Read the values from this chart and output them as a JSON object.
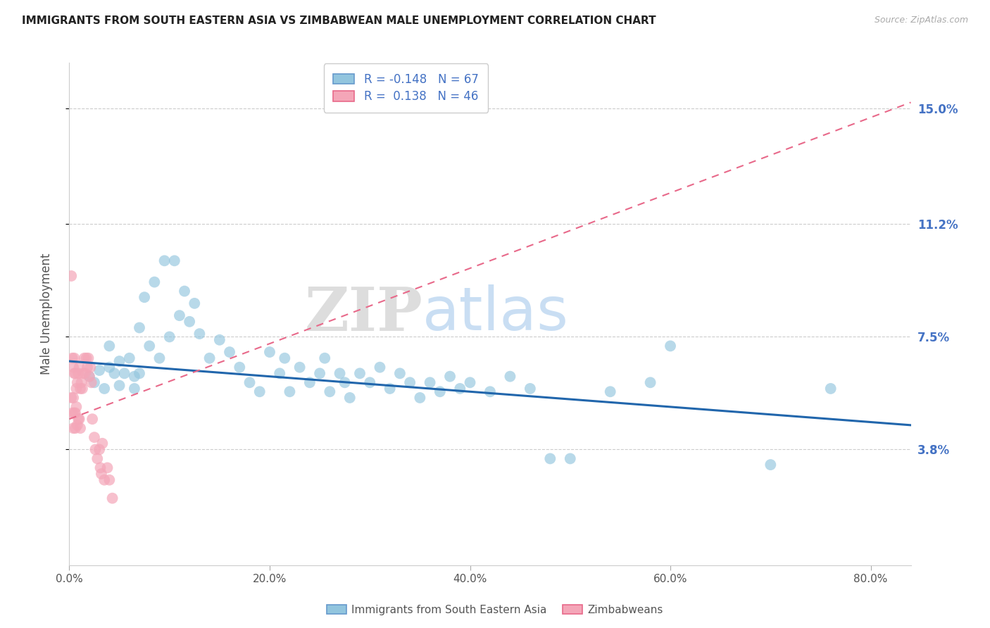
{
  "title": "IMMIGRANTS FROM SOUTH EASTERN ASIA VS ZIMBABWEAN MALE UNEMPLOYMENT CORRELATION CHART",
  "source": "Source: ZipAtlas.com",
  "ylabel": "Male Unemployment",
  "xlabel_ticks": [
    "0.0%",
    "20.0%",
    "40.0%",
    "60.0%",
    "80.0%"
  ],
  "xlabel_vals": [
    0.0,
    0.2,
    0.4,
    0.6,
    0.8
  ],
  "ytick_labels": [
    "3.8%",
    "7.5%",
    "11.2%",
    "15.0%"
  ],
  "ytick_vals": [
    0.038,
    0.075,
    0.112,
    0.15
  ],
  "xlim": [
    0.0,
    0.84
  ],
  "ylim": [
    0.0,
    0.165
  ],
  "r_blue": -0.148,
  "n_blue": 67,
  "r_pink": 0.138,
  "n_pink": 46,
  "legend_label_blue": "Immigrants from South Eastern Asia",
  "legend_label_pink": "Zimbabweans",
  "blue_color": "#92c5de",
  "pink_color": "#f4a6b8",
  "trend_blue_color": "#2166ac",
  "trend_pink_color": "#e8698a",
  "watermark_zip": "ZIP",
  "watermark_atlas": "atlas",
  "blue_scatter_x": [
    0.02,
    0.025,
    0.03,
    0.035,
    0.04,
    0.04,
    0.045,
    0.05,
    0.05,
    0.055,
    0.06,
    0.065,
    0.065,
    0.07,
    0.07,
    0.075,
    0.08,
    0.085,
    0.09,
    0.095,
    0.1,
    0.105,
    0.11,
    0.115,
    0.12,
    0.125,
    0.13,
    0.14,
    0.15,
    0.16,
    0.17,
    0.18,
    0.19,
    0.2,
    0.21,
    0.215,
    0.22,
    0.23,
    0.24,
    0.25,
    0.255,
    0.26,
    0.27,
    0.275,
    0.28,
    0.29,
    0.3,
    0.31,
    0.32,
    0.33,
    0.34,
    0.35,
    0.36,
    0.37,
    0.38,
    0.39,
    0.4,
    0.42,
    0.44,
    0.46,
    0.48,
    0.5,
    0.54,
    0.58,
    0.6,
    0.7,
    0.76
  ],
  "blue_scatter_y": [
    0.062,
    0.06,
    0.064,
    0.058,
    0.072,
    0.065,
    0.063,
    0.067,
    0.059,
    0.063,
    0.068,
    0.062,
    0.058,
    0.078,
    0.063,
    0.088,
    0.072,
    0.093,
    0.068,
    0.1,
    0.075,
    0.1,
    0.082,
    0.09,
    0.08,
    0.086,
    0.076,
    0.068,
    0.074,
    0.07,
    0.065,
    0.06,
    0.057,
    0.07,
    0.063,
    0.068,
    0.057,
    0.065,
    0.06,
    0.063,
    0.068,
    0.057,
    0.063,
    0.06,
    0.055,
    0.063,
    0.06,
    0.065,
    0.058,
    0.063,
    0.06,
    0.055,
    0.06,
    0.057,
    0.062,
    0.058,
    0.06,
    0.057,
    0.062,
    0.058,
    0.035,
    0.035,
    0.057,
    0.06,
    0.072,
    0.033,
    0.058
  ],
  "pink_scatter_x": [
    0.002,
    0.002,
    0.003,
    0.003,
    0.004,
    0.004,
    0.004,
    0.005,
    0.005,
    0.005,
    0.006,
    0.006,
    0.006,
    0.007,
    0.007,
    0.008,
    0.008,
    0.009,
    0.009,
    0.01,
    0.01,
    0.011,
    0.011,
    0.012,
    0.013,
    0.014,
    0.015,
    0.016,
    0.017,
    0.018,
    0.019,
    0.02,
    0.021,
    0.022,
    0.023,
    0.025,
    0.026,
    0.028,
    0.03,
    0.031,
    0.032,
    0.033,
    0.035,
    0.038,
    0.04,
    0.043
  ],
  "pink_scatter_y": [
    0.095,
    0.055,
    0.068,
    0.05,
    0.065,
    0.055,
    0.045,
    0.063,
    0.05,
    0.068,
    0.05,
    0.063,
    0.045,
    0.058,
    0.052,
    0.06,
    0.046,
    0.063,
    0.048,
    0.065,
    0.048,
    0.058,
    0.045,
    0.06,
    0.058,
    0.063,
    0.068,
    0.063,
    0.068,
    0.065,
    0.068,
    0.062,
    0.065,
    0.06,
    0.048,
    0.042,
    0.038,
    0.035,
    0.038,
    0.032,
    0.03,
    0.04,
    0.028,
    0.032,
    0.028,
    0.022
  ],
  "blue_trend_x": [
    0.0,
    0.84
  ],
  "blue_trend_y_start": 0.067,
  "blue_trend_y_end": 0.046,
  "pink_trend_x": [
    0.0,
    0.84
  ],
  "pink_trend_y_start": 0.048,
  "pink_trend_y_end": 0.152
}
